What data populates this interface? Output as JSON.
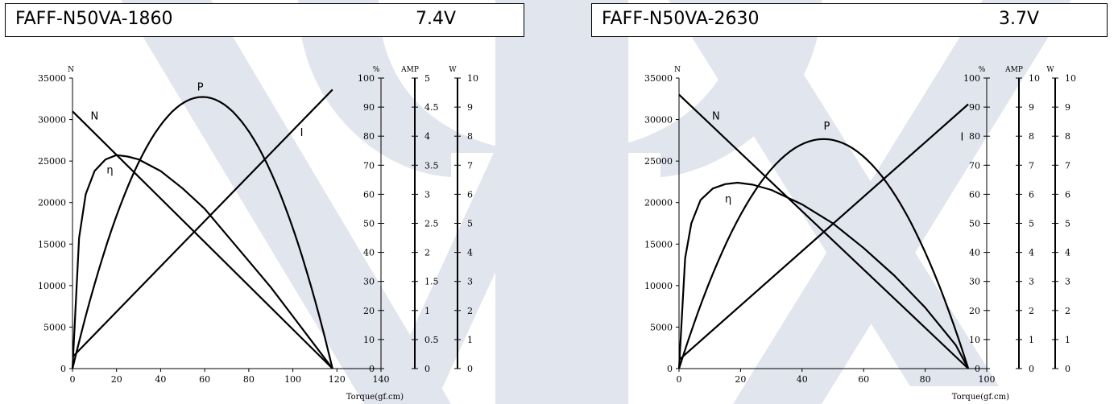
{
  "watermark_color": "#c9d1e0",
  "chart_data": [
    {
      "type": "line",
      "title": "FAFF-N50VA-1860",
      "voltage": "7.4V",
      "xlabel": "Torque(gf.cm)",
      "x_ticks": [
        0,
        20,
        40,
        60,
        80,
        100,
        120,
        140
      ],
      "xlim": [
        0,
        140
      ],
      "axes": [
        {
          "unit": "N",
          "ylim": [
            0,
            35000
          ],
          "ticks": [
            0,
            5000,
            10000,
            15000,
            20000,
            25000,
            30000,
            35000
          ]
        },
        {
          "unit": "%",
          "ylim": [
            0,
            100
          ],
          "ticks": [
            0,
            10,
            20,
            30,
            40,
            50,
            60,
            70,
            80,
            90,
            100
          ]
        },
        {
          "unit": "AMP",
          "ylim": [
            0,
            5
          ],
          "ticks": [
            "0",
            "0.5",
            "1",
            "1.5",
            "2",
            "2.5",
            "3",
            "3.5",
            "4",
            "4.5",
            "5"
          ]
        },
        {
          "unit": "W",
          "ylim": [
            0,
            10
          ],
          "ticks": [
            0,
            1,
            2,
            3,
            4,
            5,
            6,
            7,
            8,
            9,
            10
          ]
        }
      ],
      "series": [
        {
          "name": "N",
          "axis": "N",
          "curve": "linear",
          "x": [
            0,
            118
          ],
          "y": [
            31000,
            0
          ]
        },
        {
          "name": "I",
          "axis": "AMP",
          "curve": "linear",
          "x": [
            0,
            118
          ],
          "y": [
            0.2,
            4.8
          ]
        },
        {
          "name": "P",
          "axis": "W",
          "curve": "power",
          "x0": 0,
          "x1": 118,
          "peak": 9.35
        },
        {
          "name": "η",
          "axis": "%",
          "curve": "efficiency",
          "x": [
            0,
            3,
            6,
            10,
            15,
            20,
            25,
            30,
            40,
            50,
            60,
            70,
            80,
            90,
            100,
            110,
            118
          ],
          "y": [
            0,
            45,
            60,
            68,
            72,
            73.5,
            73,
            72,
            68,
            62,
            55,
            46,
            37,
            28,
            18,
            8,
            0
          ]
        }
      ],
      "labels": [
        {
          "text": "N",
          "series": "N",
          "x": 10,
          "y": 30000
        },
        {
          "text": "P",
          "series": "P",
          "x": 58,
          "y": 33500
        },
        {
          "text": "I",
          "series": "I",
          "x": 104,
          "y": 28000
        },
        {
          "text": "η",
          "series": "η",
          "x": 17,
          "y": 23500
        }
      ]
    },
    {
      "type": "line",
      "title": "FAFF-N50VA-2630",
      "voltage": "3.7V",
      "xlabel": "Torque(gf.cm)",
      "x_ticks": [
        0,
        20,
        40,
        60,
        80,
        100
      ],
      "xlim": [
        0,
        100
      ],
      "axes": [
        {
          "unit": "N",
          "ylim": [
            0,
            35000
          ],
          "ticks": [
            0,
            5000,
            10000,
            15000,
            20000,
            25000,
            30000,
            35000
          ]
        },
        {
          "unit": "%",
          "ylim": [
            0,
            100
          ],
          "ticks": [
            0,
            10,
            20,
            30,
            40,
            50,
            60,
            70,
            80,
            90,
            100
          ]
        },
        {
          "unit": "AMP",
          "ylim": [
            0,
            10
          ],
          "ticks": [
            "0",
            "1",
            "2",
            "3",
            "4",
            "5",
            "6",
            "7",
            "8",
            "9",
            "10"
          ]
        },
        {
          "unit": "W",
          "ylim": [
            0,
            10
          ],
          "ticks": [
            0,
            1,
            2,
            3,
            4,
            5,
            6,
            7,
            8,
            9,
            10
          ]
        }
      ],
      "series": [
        {
          "name": "N",
          "axis": "N",
          "curve": "linear",
          "x": [
            0,
            94
          ],
          "y": [
            33000,
            0
          ]
        },
        {
          "name": "I",
          "axis": "AMP",
          "curve": "linear",
          "x": [
            0,
            94
          ],
          "y": [
            0.3,
            9.1
          ]
        },
        {
          "name": "P",
          "axis": "W",
          "curve": "power",
          "x0": 0,
          "x1": 94,
          "peak": 7.9
        },
        {
          "name": "η",
          "axis": "%",
          "curve": "efficiency",
          "x": [
            0,
            2,
            4,
            7,
            11,
            15,
            19,
            24,
            30,
            40,
            50,
            60,
            70,
            80,
            90,
            94
          ],
          "y": [
            0,
            38,
            50,
            58,
            62,
            63.5,
            64,
            63.3,
            61.5,
            56.5,
            50,
            41.5,
            32,
            21,
            8,
            0
          ]
        }
      ],
      "labels": [
        {
          "text": "N",
          "series": "N",
          "x": 12,
          "y": 30000
        },
        {
          "text": "P",
          "series": "P",
          "x": 48,
          "y": 28800
        },
        {
          "text": "I",
          "series": "I",
          "x": 92,
          "y": 27500
        },
        {
          "text": "η",
          "series": "η",
          "x": 16,
          "y": 20000
        }
      ]
    }
  ]
}
